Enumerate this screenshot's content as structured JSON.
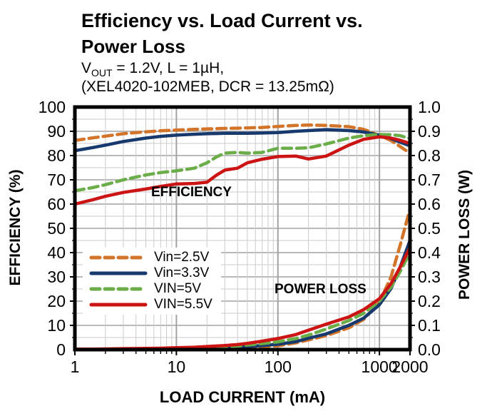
{
  "title": {
    "line1": "Efficiency vs. Load Current vs.",
    "line2": "Power Loss"
  },
  "subtitle": {
    "vout_symbol": "V",
    "vout_sub": "OUT",
    "line1_rest": " = 1.2V, L = 1µH,",
    "line2": "(XEL4020-102MEB, DCR = 13.25mΩ)"
  },
  "chart_data": {
    "type": "line",
    "x_axis": {
      "label": "LOAD CURRENT (mA)",
      "scale": "log",
      "min": 1,
      "max": 2000,
      "tick_values": [
        1,
        10,
        100,
        1000,
        2000
      ],
      "tick_labels": [
        "1",
        "10",
        "100",
        "1000",
        "2000"
      ]
    },
    "y_left_axis": {
      "label": "EFFICIENCY (%)",
      "min": 0,
      "max": 100,
      "tick_values": [
        0,
        10,
        20,
        30,
        40,
        50,
        60,
        70,
        80,
        90,
        100
      ],
      "tick_labels": [
        "0",
        "10",
        "20",
        "30",
        "40",
        "50",
        "60",
        "70",
        "80",
        "90",
        "100"
      ]
    },
    "y_right_axis": {
      "label": "POWER LOSS (W)",
      "min": 0.0,
      "max": 1.0,
      "tick_labels": [
        "0.0",
        "0.1",
        "0.2",
        "0.3",
        "0.4",
        "0.5",
        "0.6",
        "0.7",
        "0.8",
        "0.9",
        "1.0"
      ]
    },
    "annotations": [
      {
        "text": "EFFICIENCY"
      },
      {
        "text": "POWER LOSS"
      }
    ],
    "grid": {
      "show": true,
      "minor_color": "#cbcbcb",
      "major_color": "#a2a2a2"
    },
    "legend": {
      "position": "inside-lower-left"
    },
    "x_ma": [
      1,
      1.5,
      2,
      3,
      5,
      7,
      10,
      15,
      20,
      25,
      30,
      40,
      50,
      70,
      100,
      150,
      200,
      300,
      500,
      700,
      1000,
      1300,
      1600,
      2000
    ],
    "series": [
      {
        "name": "Vin=2.5V",
        "color": "#D2752B",
        "line_style": "dashed",
        "efficiency_pct": [
          86.2,
          87.3,
          88.0,
          89.0,
          89.8,
          90.2,
          90.5,
          90.8,
          91.0,
          91.1,
          91.2,
          91.3,
          91.4,
          91.6,
          92.0,
          92.4,
          92.6,
          92.4,
          91.9,
          90.8,
          88.3,
          86.2,
          83.7,
          81.0
        ],
        "power_loss_w": [
          0.001,
          0.001,
          0.001,
          0.002,
          0.002,
          0.003,
          0.003,
          0.004,
          0.005,
          0.006,
          0.007,
          0.008,
          0.01,
          0.013,
          0.016,
          0.028,
          0.04,
          0.058,
          0.09,
          0.125,
          0.195,
          0.3,
          0.43,
          0.58
        ]
      },
      {
        "name": "Vin=3.3V",
        "color": "#17396D",
        "line_style": "solid",
        "efficiency_pct": [
          82.0,
          83.3,
          84.3,
          85.8,
          87.2,
          87.9,
          88.4,
          88.8,
          89.0,
          89.1,
          89.2,
          89.2,
          89.2,
          89.3,
          89.5,
          90.0,
          90.3,
          90.7,
          90.3,
          89.7,
          88.4,
          87.0,
          85.5,
          84.0
        ],
        "power_loss_w": [
          0.001,
          0.001,
          0.002,
          0.002,
          0.003,
          0.003,
          0.004,
          0.005,
          0.006,
          0.007,
          0.008,
          0.01,
          0.013,
          0.017,
          0.022,
          0.033,
          0.047,
          0.065,
          0.1,
          0.13,
          0.185,
          0.252,
          0.34,
          0.45
        ]
      },
      {
        "name": "VIN=5V",
        "color": "#6BAD49",
        "line_style": "dashed",
        "efficiency_pct": [
          65.5,
          66.8,
          68.0,
          70.0,
          72.0,
          73.0,
          73.7,
          74.8,
          77.0,
          79.5,
          81.0,
          81.3,
          81.0,
          81.3,
          83.0,
          83.0,
          83.2,
          84.8,
          87.2,
          88.2,
          88.7,
          88.6,
          88.2,
          87.0
        ],
        "power_loss_w": [
          0.001,
          0.002,
          0.002,
          0.003,
          0.004,
          0.004,
          0.006,
          0.007,
          0.009,
          0.011,
          0.012,
          0.015,
          0.019,
          0.025,
          0.032,
          0.046,
          0.06,
          0.085,
          0.12,
          0.15,
          0.2,
          0.258,
          0.322,
          0.4
        ]
      },
      {
        "name": "VIN=5.5V",
        "color": "#CD1414",
        "line_style": "solid",
        "efficiency_pct": [
          60.0,
          61.8,
          63.2,
          64.8,
          66.2,
          67.3,
          68.3,
          68.5,
          69.0,
          72.0,
          74.0,
          74.8,
          77.0,
          78.5,
          79.6,
          79.8,
          78.6,
          79.8,
          84.3,
          86.7,
          87.7,
          87.2,
          86.3,
          85.0
        ],
        "power_loss_w": [
          0.002,
          0.002,
          0.003,
          0.004,
          0.005,
          0.006,
          0.008,
          0.01,
          0.013,
          0.015,
          0.017,
          0.021,
          0.026,
          0.035,
          0.046,
          0.062,
          0.08,
          0.105,
          0.135,
          0.165,
          0.21,
          0.272,
          0.34,
          0.42
        ]
      }
    ]
  }
}
